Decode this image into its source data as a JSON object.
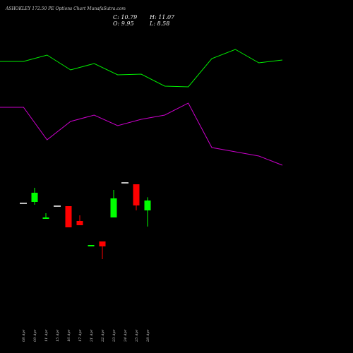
{
  "chart_data": {
    "type": "candlestick",
    "title": "ASHOKLEY 172.50 PE Options Chart MunafaSutra.com",
    "close_label": "C: 10.79",
    "open_label": "O: 9.95",
    "high_label": "H: 11.07",
    "low_label": "L: 8.58",
    "categories": [
      "08 Apr",
      "09 Apr",
      "11 Apr",
      "15 Apr",
      "16 Apr",
      "17 Apr",
      "21 Apr",
      "22 Apr",
      "23 Apr",
      "24 Apr",
      "25 Apr",
      "28 Apr"
    ],
    "open": [
      10.55,
      10.67,
      9.23,
      10.31,
      10.31,
      9.05,
      6.89,
      7.31,
      9.35,
      12.29,
      12.17,
      9.95
    ],
    "high": [
      10.55,
      11.87,
      9.71,
      10.31,
      10.31,
      9.53,
      7.01,
      7.31,
      11.69,
      12.29,
      12.17,
      11.07
    ],
    "low": [
      10.55,
      10.43,
      9.23,
      10.31,
      8.51,
      8.69,
      6.89,
      5.81,
      9.35,
      12.29,
      9.95,
      8.58
    ],
    "close": [
      10.55,
      11.45,
      9.35,
      10.31,
      8.51,
      8.69,
      7.01,
      6.89,
      10.97,
      12.29,
      10.37,
      10.79
    ],
    "ylim": [
      -2.17,
      27.83
    ],
    "up_color": "#00ff00",
    "down_color": "#ff0000",
    "flat_color": "#ffffff",
    "lines": {
      "x": [
        0,
        1,
        2,
        3,
        4,
        5,
        6,
        7,
        8,
        9,
        10,
        11,
        12
      ],
      "xlim": [
        0,
        12
      ],
      "ylim": [
        0,
        100
      ],
      "series": [
        {
          "color": "#00ee00",
          "values": [
            82.6,
            82.6,
            84.4,
            80.2,
            82,
            78.8,
            79,
            75.6,
            75.4,
            83.4,
            86,
            82.2,
            83
          ]
        },
        {
          "color": "#cc00cc",
          "values": [
            69.6,
            69.6,
            60.4,
            65.6,
            67.4,
            64.4,
            66.2,
            67.4,
            70.8,
            58.2,
            57,
            55.8,
            53.2
          ]
        }
      ]
    }
  }
}
